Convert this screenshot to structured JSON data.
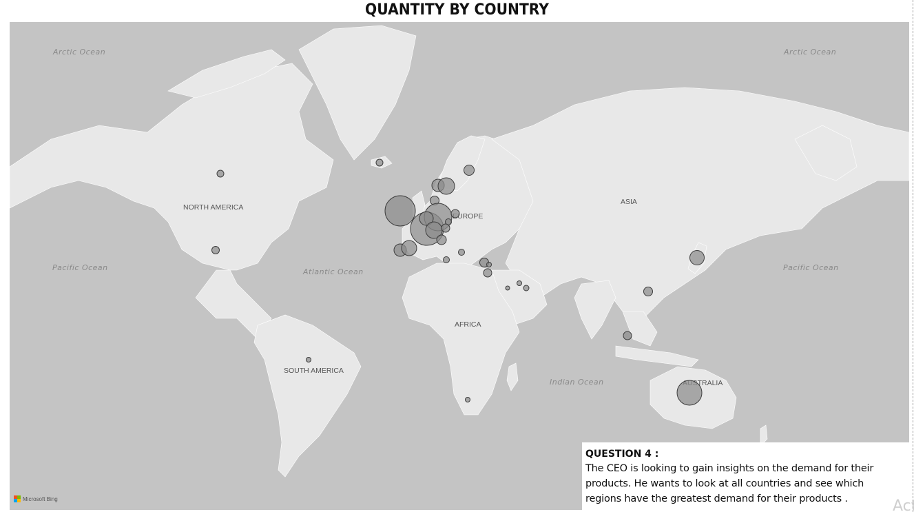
{
  "title": "QUANTITY BY COUNTRY",
  "map": {
    "ocean_labels": [
      {
        "id": "arctic-ocean-west",
        "text": "Arctic Ocean"
      },
      {
        "id": "arctic-ocean-east",
        "text": "Arctic Ocean"
      },
      {
        "id": "pacific-ocean-west",
        "text": "Pacific Ocean"
      },
      {
        "id": "atlantic-ocean",
        "text": "Atlantic Ocean"
      },
      {
        "id": "pacific-ocean-east",
        "text": "Pacific Ocean"
      },
      {
        "id": "indian-ocean",
        "text": "Indian Ocean"
      }
    ],
    "region_labels": [
      {
        "id": "north-america",
        "text": "NORTH AMERICA"
      },
      {
        "id": "europe",
        "text": "EUROPE"
      },
      {
        "id": "asia",
        "text": "ASIA"
      },
      {
        "id": "africa",
        "text": "AFRICA"
      },
      {
        "id": "south-america",
        "text": "SOUTH AMERICA"
      },
      {
        "id": "australia",
        "text": "AUSTRALIA"
      }
    ],
    "bubble_color": "#8c8c8c",
    "land_color": "#e8e8e8",
    "water_color": "#c4c4c4",
    "attribution": "Microsoft Bing"
  },
  "question": {
    "heading": "QUESTION 4 :",
    "lines": [
      "The CEO is looking to gain insights on the demand for their",
      "products. He wants to look at all countries and see which",
      "regions have the greatest demand for their products ."
    ]
  },
  "watermark": "Activate Windows"
}
